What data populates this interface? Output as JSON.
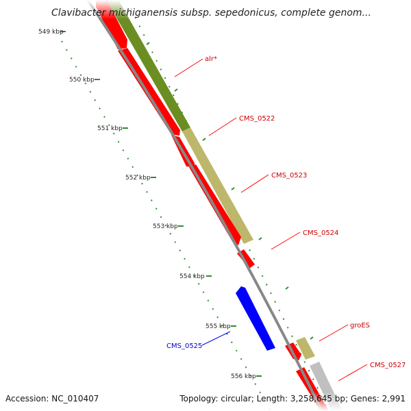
{
  "title": "Clavibacter michiganensis subsp. sepedonicus, complete genom...",
  "footer": {
    "accession": "Accession: NC_010407",
    "summary": "Topology: circular; Length: 3,258,645 bp; Genes: 2,991"
  },
  "colors": {
    "forward_gene": "#ff0000",
    "reverse_gene": "#0000ff",
    "cog_green": "#6b8e23",
    "cog_khaki": "#bdb76b",
    "cog_grey": "#c0c0c0",
    "backbone": "#888888",
    "ticks": "#2e8b2e"
  },
  "ticks": [
    {
      "label": "549 kbp"
    },
    {
      "label": "550 kbp"
    },
    {
      "label": "551 kbp"
    },
    {
      "label": "552 kbp"
    },
    {
      "label": "553 kbp"
    },
    {
      "label": "554 kbp"
    },
    {
      "label": "555 kbp"
    },
    {
      "label": "556 kbp"
    }
  ],
  "gene_labels": [
    {
      "name": "alr*",
      "strand": "forward"
    },
    {
      "name": "CMS_0522",
      "strand": "forward"
    },
    {
      "name": "CMS_0523",
      "strand": "forward"
    },
    {
      "name": "CMS_0524",
      "strand": "forward"
    },
    {
      "name": "groES",
      "strand": "forward"
    },
    {
      "name": "CMS_0527",
      "strand": "forward"
    },
    {
      "name": "CMS_0525",
      "strand": "reverse"
    }
  ]
}
